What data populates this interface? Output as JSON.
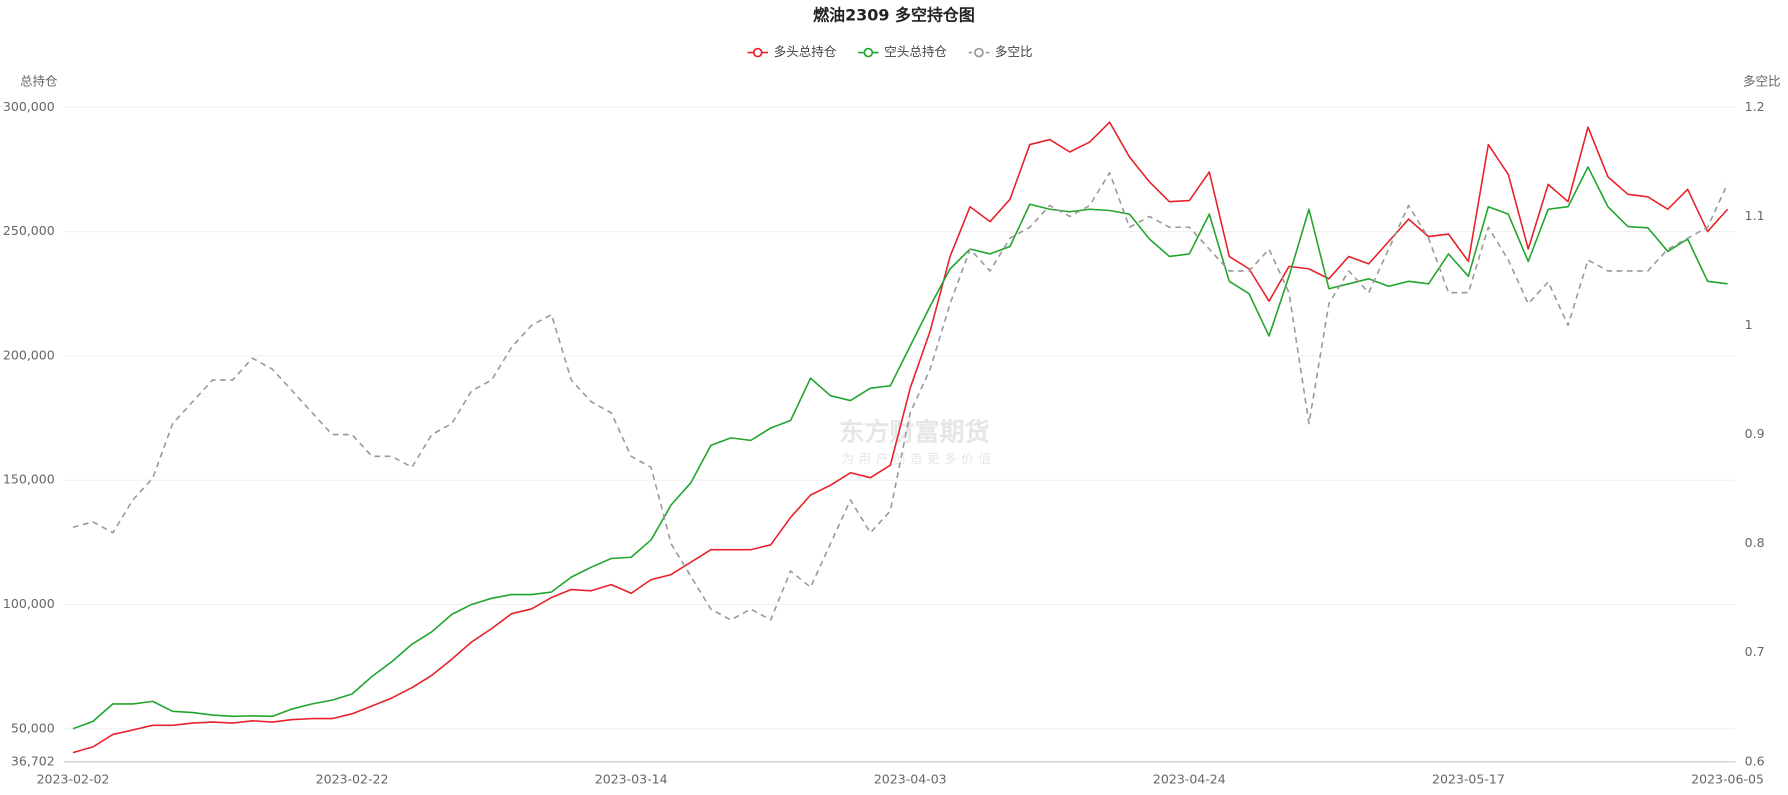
{
  "chart_data": {
    "type": "line",
    "title": "燃油2309 多空持仓图",
    "y_label": "总持仓",
    "y2_label": "多空比",
    "watermark": "东方财富期货",
    "watermark_slogan": "为用户创造更多价值",
    "categories": [
      "2023-02-02",
      null,
      null,
      null,
      null,
      null,
      null,
      null,
      null,
      null,
      null,
      null,
      null,
      null,
      "2023-02-22",
      null,
      null,
      null,
      null,
      null,
      null,
      null,
      null,
      null,
      null,
      null,
      null,
      null,
      "2023-03-14",
      null,
      null,
      null,
      null,
      null,
      null,
      null,
      null,
      null,
      null,
      null,
      null,
      null,
      "2023-04-03",
      null,
      null,
      null,
      null,
      null,
      null,
      null,
      null,
      null,
      null,
      null,
      null,
      null,
      "2023-04-24",
      null,
      null,
      null,
      null,
      null,
      null,
      null,
      null,
      null,
      null,
      null,
      null,
      null,
      "2023-05-17",
      null,
      null,
      null,
      null,
      null,
      null,
      null,
      null,
      null,
      null,
      null,
      null,
      "2023-06-05"
    ],
    "ylim": [
      36702,
      300000
    ],
    "yticks": [
      {
        "value": 36702,
        "label": "36,702"
      },
      {
        "value": 50000,
        "label": "50,000"
      },
      {
        "value": 100000,
        "label": "100,000"
      },
      {
        "value": 150000,
        "label": "150,000"
      },
      {
        "value": 200000,
        "label": "200,000"
      },
      {
        "value": 250000,
        "label": "250,000"
      },
      {
        "value": 300000,
        "label": "300,000"
      }
    ],
    "y2lim": [
      0.6,
      1.2
    ],
    "y2ticks": [
      0.6,
      0.7,
      0.8,
      0.9,
      1,
      1.1,
      1.2
    ],
    "grid": true,
    "legend": "top",
    "series": [
      {
        "name": "多头总持仓",
        "color": "#e8222a",
        "dashed": false,
        "values": [
          40400,
          42700,
          47700,
          49500,
          51400,
          51400,
          52300,
          52700,
          52300,
          53200,
          52700,
          53700,
          54100,
          54100,
          56000,
          59200,
          62400,
          66500,
          71500,
          78000,
          84900,
          90300,
          96300,
          98200,
          102800,
          106000,
          105500,
          108000,
          104500,
          110000,
          112000,
          117000,
          122000,
          122000,
          122000,
          124000,
          135000,
          144000,
          148000,
          153000,
          151000,
          156000,
          187000,
          210000,
          240000,
          260000,
          254000,
          263000,
          285000,
          287000,
          282000,
          286000,
          294000,
          280000,
          270000,
          262000,
          262500,
          274000,
          240000,
          235000,
          222000,
          236000,
          235000,
          231000,
          240000,
          237000,
          246000,
          255000,
          248000,
          249000,
          238000,
          285000,
          273000,
          243000,
          269000,
          262000,
          292000,
          272000,
          265000,
          264000,
          259000,
          267000,
          250000,
          259000
        ]
      },
      {
        "name": "空头总持仓",
        "color": "#22a52f",
        "dashed": false,
        "values": [
          50000,
          53000,
          60000,
          60000,
          61000,
          57000,
          56500,
          55500,
          55000,
          55200,
          55000,
          58000,
          60000,
          61500,
          64000,
          71000,
          77000,
          84000,
          89000,
          96000,
          100000,
          102500,
          104000,
          104000,
          105000,
          111000,
          115000,
          118500,
          119000,
          126000,
          140000,
          149000,
          164000,
          167000,
          166000,
          171000,
          174000,
          191000,
          184000,
          182000,
          187000,
          188000,
          204000,
          220000,
          235000,
          243000,
          241000,
          244000,
          261000,
          259000,
          258000,
          259000,
          258500,
          257000,
          247000,
          240000,
          241000,
          257000,
          230000,
          225000,
          208000,
          232000,
          259000,
          227000,
          229000,
          231000,
          228000,
          230000,
          229000,
          241000,
          232000,
          260000,
          257000,
          238000,
          259000,
          260000,
          276000,
          260000,
          252000,
          251500,
          242000,
          247000,
          230000,
          229000
        ]
      },
      {
        "name": "多空比",
        "color": "#999999",
        "dashed": true,
        "axis": "y2",
        "values": [
          0.815,
          0.82,
          0.81,
          0.84,
          0.86,
          0.91,
          0.93,
          0.95,
          0.95,
          0.97,
          0.96,
          0.94,
          0.92,
          0.9,
          0.9,
          0.88,
          0.88,
          0.87,
          0.9,
          0.91,
          0.94,
          0.95,
          0.98,
          1.0,
          1.01,
          0.95,
          0.93,
          0.92,
          0.88,
          0.87,
          0.8,
          0.77,
          0.74,
          0.73,
          0.74,
          0.73,
          0.775,
          0.76,
          0.8,
          0.84,
          0.81,
          0.83,
          0.92,
          0.96,
          1.02,
          1.07,
          1.05,
          1.08,
          1.09,
          1.11,
          1.1,
          1.11,
          1.14,
          1.09,
          1.1,
          1.09,
          1.09,
          1.07,
          1.05,
          1.05,
          1.07,
          1.03,
          0.91,
          1.02,
          1.05,
          1.03,
          1.07,
          1.11,
          1.08,
          1.03,
          1.03,
          1.09,
          1.06,
          1.02,
          1.04,
          1.0,
          1.06,
          1.05,
          1.05,
          1.05,
          1.07,
          1.08,
          1.09,
          1.13
        ]
      }
    ]
  }
}
